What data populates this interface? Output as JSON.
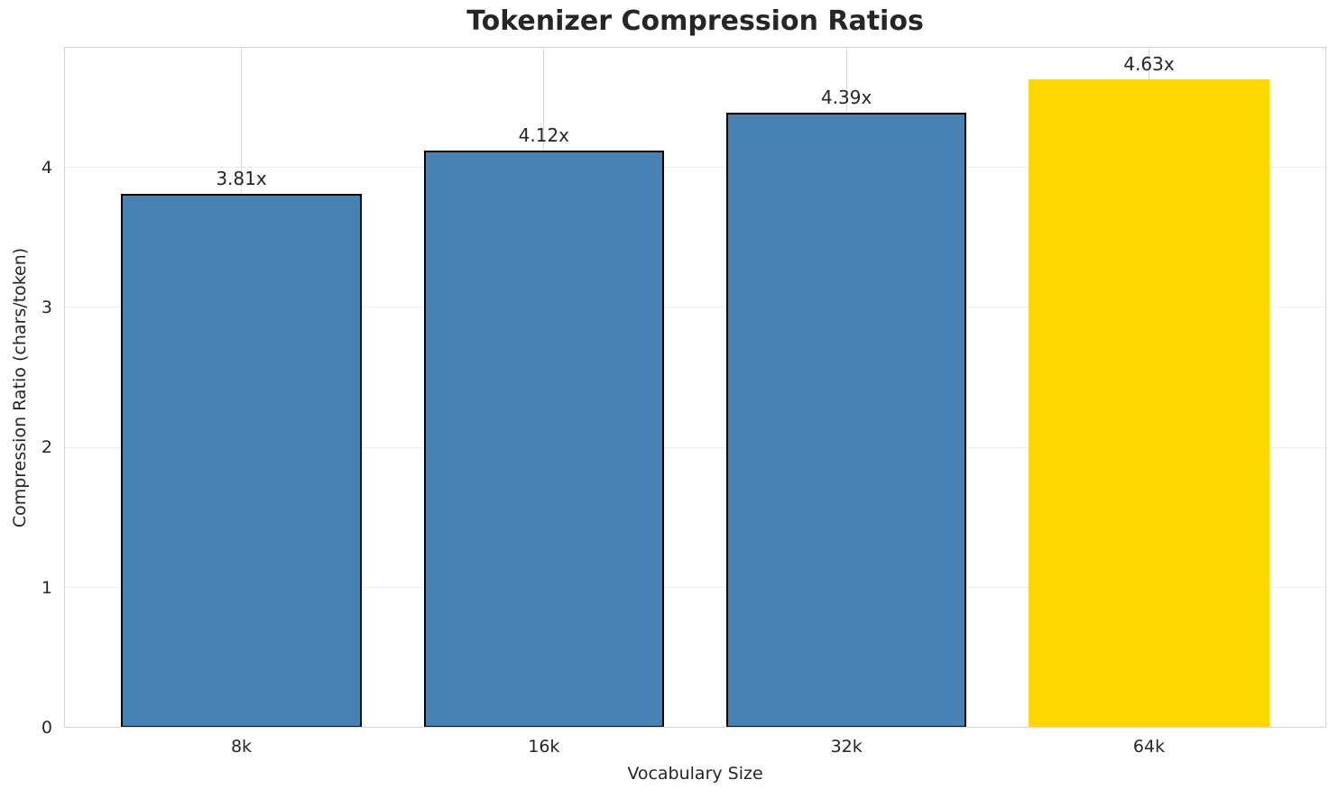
{
  "chart_data": {
    "type": "bar",
    "title": "Tokenizer Compression Ratios",
    "xlabel": "Vocabulary Size",
    "ylabel": "Compression Ratio (chars/token)",
    "categories": [
      "8k",
      "16k",
      "32k",
      "64k"
    ],
    "values": [
      3.81,
      4.12,
      4.39,
      4.63
    ],
    "bar_labels": [
      "3.81x",
      "4.12x",
      "4.39x",
      "4.63x"
    ],
    "bar_colors": [
      "#4682B4",
      "#4682B4",
      "#4682B4",
      "#FFD700"
    ],
    "bar_edge_colors": [
      "#000000",
      "#000000",
      "#000000",
      "none"
    ],
    "ylim": [
      0,
      4.86
    ],
    "yticks": [
      0,
      1,
      2,
      3,
      4
    ],
    "grid": true,
    "legend": "none",
    "colors": {
      "default_bar": "#4682B4",
      "highlight_bar": "#FFD700",
      "text": "#262626",
      "grid_vertical": "#d9d9d9",
      "grid_horizontal": "#ebebeb",
      "spine": "#d4d4d4"
    }
  }
}
